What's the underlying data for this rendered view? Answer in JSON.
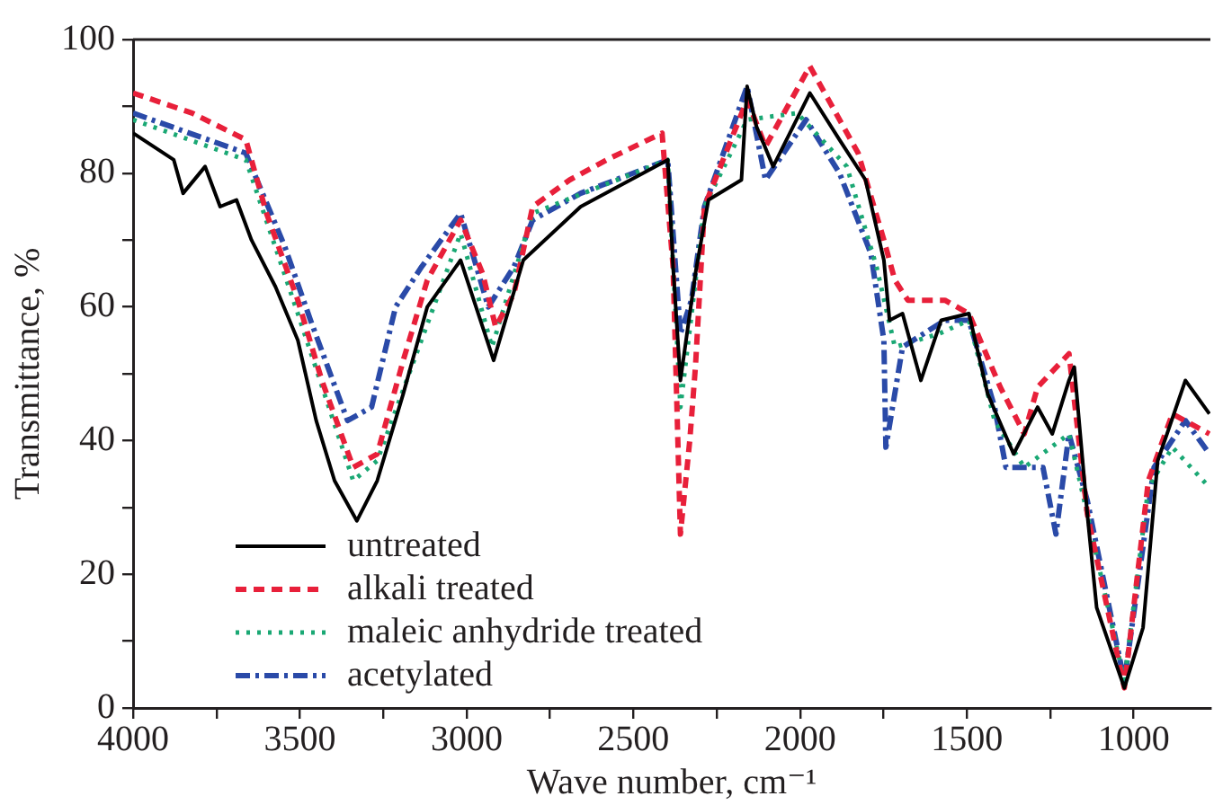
{
  "chart_data": {
    "type": "line",
    "xlabel": "Wave number, cm⁻¹",
    "ylabel": "Transmittance, %",
    "xlim": [
      4000,
      770
    ],
    "xticks": [
      4000,
      {
        "value": 3750,
        "label": null
      },
      3500,
      {
        "value": 3250,
        "label": null
      },
      3000,
      {
        "value": 2750,
        "label": null
      },
      2500,
      {
        "value": 2250,
        "label": null
      },
      2000,
      {
        "value": 1750,
        "label": null
      },
      1500,
      {
        "value": 1250,
        "label": null
      },
      1000
    ],
    "ylim": [
      0,
      100
    ],
    "yticks": [
      0,
      {
        "value": 10,
        "label": null
      },
      20,
      {
        "value": 30,
        "label": null
      },
      40,
      {
        "value": 50,
        "label": null
      },
      60,
      {
        "value": 70,
        "label": null
      },
      80,
      {
        "value": 90,
        "label": null
      },
      100
    ],
    "grid": false,
    "legend": "bottom left",
    "marker": "none",
    "series": [
      {
        "name": "untreated",
        "color": "#000000",
        "line_style": "solid",
        "x": [
          4000,
          3878,
          3850,
          3784,
          3739,
          3690,
          3645,
          3573,
          3506,
          3451,
          3396,
          3329,
          3268,
          3190,
          3118,
          3018,
          2919,
          2830,
          2658,
          2397,
          2381,
          2359,
          2314,
          2275,
          2176,
          2159,
          2131,
          2081,
          1971,
          1882,
          1804,
          1749,
          1732,
          1693,
          1638,
          1577,
          1494,
          1438,
          1360,
          1288,
          1244,
          1194,
          1178,
          1139,
          1111,
          1028,
          972,
          928,
          900,
          845,
          773
        ],
        "values": [
          86,
          82,
          77,
          81,
          75,
          76,
          70,
          63,
          55,
          43,
          34,
          28,
          34,
          47,
          60,
          67,
          52,
          67,
          75,
          82,
          66,
          49,
          65,
          76,
          79,
          93,
          87,
          81,
          92,
          85,
          79,
          67,
          58,
          59,
          49,
          58,
          59,
          47,
          38,
          45,
          41,
          49,
          51,
          29,
          15,
          3,
          12,
          37,
          41,
          49,
          44
        ]
      },
      {
        "name": "alkali treated",
        "color": "#e8203a",
        "line_style": "dashed",
        "x": [
          4000,
          3823,
          3662,
          3600,
          3506,
          3434,
          3340,
          3268,
          3190,
          3118,
          3018,
          2952,
          2913,
          2858,
          2802,
          2691,
          2580,
          2414,
          2381,
          2359,
          2331,
          2314,
          2287,
          2231,
          2159,
          2104,
          1971,
          1826,
          1749,
          1716,
          1677,
          1566,
          1494,
          1400,
          1328,
          1288,
          1194,
          1139,
          1028,
          956,
          884,
          773
        ],
        "values": [
          92,
          89,
          85,
          74,
          61,
          49,
          36,
          38,
          52,
          64,
          73,
          65,
          57,
          62,
          75,
          79,
          82,
          86,
          66,
          26,
          40,
          51,
          75,
          82,
          91,
          84,
          96,
          83,
          70,
          64,
          61,
          61,
          59,
          48,
          41,
          48,
          53,
          29,
          3,
          34,
          44,
          41
        ]
      },
      {
        "name": "maleic anhydride treated",
        "color": "#1aa874",
        "line_style": "dotted",
        "x": [
          4000,
          3662,
          3506,
          3340,
          3268,
          3018,
          2924,
          2802,
          2397,
          2359,
          2287,
          2159,
          2009,
          1860,
          1771,
          1716,
          1583,
          1494,
          1417,
          1328,
          1194,
          1139,
          1028,
          956,
          884,
          773
        ],
        "values": [
          88,
          82,
          59,
          34,
          37,
          71,
          54,
          74,
          82,
          45,
          75,
          88,
          89,
          81,
          66,
          54,
          56,
          58,
          43,
          36,
          41,
          29,
          4,
          33,
          39,
          33
        ]
      },
      {
        "name": "acetylated",
        "color": "#2a4aa8",
        "line_style": "dashdot",
        "x": [
          4000,
          3662,
          3545,
          3468,
          3357,
          3285,
          3213,
          3135,
          3018,
          2935,
          2858,
          2802,
          2658,
          2397,
          2359,
          2326,
          2287,
          2159,
          2104,
          1982,
          1882,
          1788,
          1749,
          1743,
          1693,
          1566,
          1494,
          1417,
          1383,
          1272,
          1233,
          1194,
          1139,
          1028,
          939,
          845,
          773
        ],
        "values": [
          89,
          83,
          69,
          58,
          43,
          45,
          60,
          66,
          74,
          60,
          66,
          73,
          77,
          82,
          56,
          61,
          75,
          93,
          79,
          88,
          80,
          68,
          55,
          39,
          54,
          58,
          58,
          45,
          36,
          36,
          26,
          41,
          31,
          4,
          36,
          43,
          38
        ]
      }
    ]
  }
}
